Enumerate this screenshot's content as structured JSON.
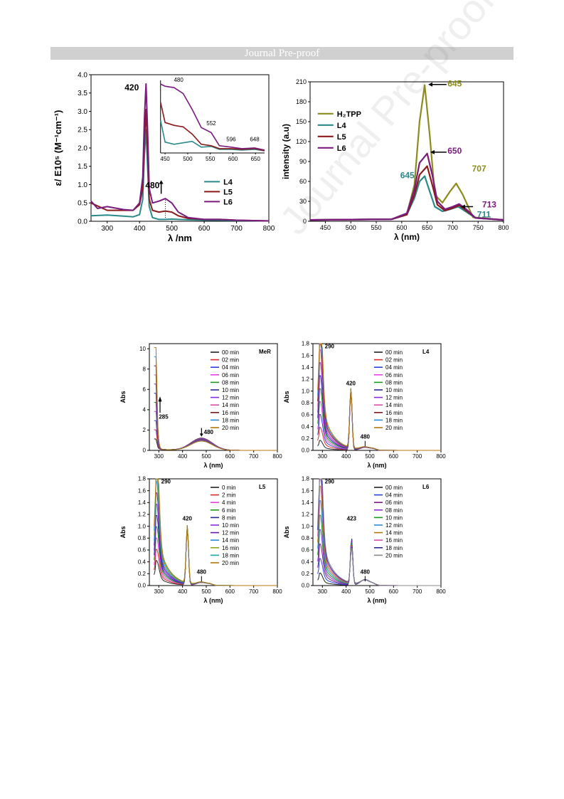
{
  "header": {
    "banner": "Journal Pre-proof"
  },
  "watermark": "Journal Pre-proof",
  "colors": {
    "L4": "#2a8a8a",
    "L5": "#8b1a1a",
    "L6": "#7a1b7e",
    "H2TPP": "#8c8c1e"
  },
  "chart_data": [
    {
      "id": "abs-main",
      "type": "line",
      "xlabel": "λ /nm",
      "ylabel": "ε/ E10⁵ (M⁻¹cm⁻¹)",
      "xlim": [
        250,
        800
      ],
      "ylim": [
        0,
        4.0
      ],
      "xticks": [
        300,
        400,
        500,
        600,
        700,
        800
      ],
      "yticks": [
        0.0,
        0.5,
        1.0,
        1.5,
        2.0,
        2.5,
        3.0,
        3.5,
        4.0
      ],
      "legend": [
        "L4",
        "L5",
        "L6"
      ],
      "legend_position": "bottom-right",
      "annotations": [
        "420",
        "480"
      ],
      "series": [
        {
          "name": "L4",
          "color": "#2a8a8a",
          "x": [
            250,
            300,
            350,
            380,
            400,
            410,
            415,
            420,
            425,
            430,
            440,
            460,
            480,
            500,
            520,
            550,
            600,
            650,
            700,
            800
          ],
          "y": [
            0.15,
            0.17,
            0.14,
            0.12,
            0.18,
            0.6,
            1.8,
            2.5,
            1.5,
            0.4,
            0.1,
            0.05,
            0.05,
            0.06,
            0.05,
            0.04,
            0.03,
            0.03,
            0.02,
            0.01
          ]
        },
        {
          "name": "L5",
          "color": "#8b1a1a",
          "x": [
            250,
            300,
            350,
            380,
            400,
            410,
            415,
            420,
            425,
            430,
            440,
            460,
            480,
            500,
            520,
            550,
            600,
            650,
            700,
            800
          ],
          "y": [
            0.5,
            0.3,
            0.3,
            0.3,
            0.45,
            0.9,
            2.2,
            3.05,
            1.9,
            0.6,
            0.3,
            0.25,
            0.28,
            0.25,
            0.15,
            0.08,
            0.05,
            0.05,
            0.03,
            0.01
          ]
        },
        {
          "name": "L6",
          "color": "#7a1b7e",
          "x": [
            250,
            270,
            300,
            350,
            380,
            400,
            410,
            415,
            420,
            425,
            430,
            440,
            460,
            480,
            500,
            520,
            550,
            600,
            650,
            700,
            800
          ],
          "y": [
            0.55,
            0.35,
            0.4,
            0.32,
            0.3,
            0.5,
            1.2,
            2.8,
            3.75,
            2.5,
            0.9,
            0.5,
            0.55,
            0.62,
            0.5,
            0.25,
            0.1,
            0.05,
            0.05,
            0.03,
            0.01
          ]
        }
      ]
    },
    {
      "id": "abs-inset",
      "type": "line",
      "xticks": [
        450,
        500,
        550,
        600,
        650
      ],
      "xlim": [
        440,
        670
      ],
      "ylim": [
        0,
        1
      ],
      "annotations": [
        "480",
        "552",
        "596",
        "648"
      ],
      "series": [
        {
          "name": "L4",
          "color": "#2a8a8a",
          "x": [
            440,
            450,
            470,
            490,
            510,
            530,
            552,
            570,
            596,
            620,
            648,
            670
          ],
          "y": [
            0.45,
            0.15,
            0.12,
            0.14,
            0.16,
            0.08,
            0.09,
            0.05,
            0.05,
            0.04,
            0.05,
            0.03
          ]
        },
        {
          "name": "L5",
          "color": "#8b1a1a",
          "x": [
            440,
            450,
            470,
            490,
            510,
            530,
            552,
            570,
            596,
            620,
            648,
            670
          ],
          "y": [
            0.7,
            0.42,
            0.38,
            0.36,
            0.26,
            0.12,
            0.1,
            0.06,
            0.06,
            0.05,
            0.06,
            0.03
          ]
        },
        {
          "name": "L6",
          "color": "#7a1b7e",
          "x": [
            440,
            450,
            470,
            490,
            510,
            530,
            552,
            570,
            596,
            620,
            648,
            670
          ],
          "y": [
            0.95,
            0.92,
            0.9,
            0.82,
            0.6,
            0.35,
            0.28,
            0.1,
            0.08,
            0.06,
            0.07,
            0.04
          ]
        }
      ]
    },
    {
      "id": "emission",
      "type": "line",
      "xlabel": "λ (nm)",
      "ylabel": "intensity (a.u)",
      "xlim": [
        420,
        800
      ],
      "ylim": [
        0,
        210
      ],
      "xticks": [
        450,
        500,
        550,
        600,
        650,
        700,
        750,
        800
      ],
      "yticks": [
        0,
        30,
        60,
        90,
        120,
        150,
        180,
        210
      ],
      "legend": [
        "H₂TPP",
        "L4",
        "L5",
        "L6"
      ],
      "legend_position": "top-left",
      "annotations": [
        "645",
        "650",
        "645",
        "707",
        "713",
        "711"
      ],
      "series": [
        {
          "name": "H₂TPP",
          "color": "#8c8c1e",
          "x": [
            420,
            580,
            610,
            625,
            635,
            645,
            655,
            665,
            680,
            695,
            707,
            720,
            740,
            800
          ],
          "y": [
            2,
            3,
            10,
            55,
            150,
            205,
            130,
            40,
            28,
            45,
            57,
            40,
            6,
            2
          ]
        },
        {
          "name": "L4",
          "color": "#2a8a8a",
          "x": [
            420,
            580,
            610,
            625,
            635,
            645,
            655,
            665,
            680,
            695,
            711,
            725,
            745,
            800
          ],
          "y": [
            2,
            3,
            10,
            35,
            60,
            68,
            45,
            22,
            15,
            18,
            22,
            15,
            5,
            2
          ]
        },
        {
          "name": "L5",
          "color": "#8b1a1a",
          "x": [
            420,
            580,
            610,
            625,
            635,
            650,
            660,
            670,
            685,
            700,
            713,
            727,
            745,
            800
          ],
          "y": [
            2,
            3,
            10,
            40,
            70,
            83,
            55,
            25,
            16,
            20,
            24,
            16,
            5,
            2
          ]
        },
        {
          "name": "L6",
          "color": "#7a1b7e",
          "x": [
            420,
            580,
            610,
            625,
            635,
            650,
            660,
            670,
            685,
            700,
            713,
            727,
            745,
            800
          ],
          "y": [
            2,
            3,
            12,
            48,
            88,
            102,
            70,
            30,
            18,
            22,
            26,
            18,
            5,
            2
          ]
        }
      ]
    },
    {
      "id": "kinetics-MeR",
      "type": "line",
      "panel_label": "MeR",
      "xlabel": "λ (nm)",
      "ylabel": "Abs",
      "xlim": [
        260,
        800
      ],
      "ylim": [
        0,
        10.5
      ],
      "xticks": [
        300,
        400,
        500,
        600,
        700,
        800
      ],
      "yticks": [
        0,
        2,
        4,
        6,
        8,
        10
      ],
      "legend": [
        "00 min",
        "02 min",
        "04 min",
        "06 min",
        "08 min",
        "10 min",
        "12 min",
        "14 min",
        "16 min",
        "18 min",
        "20 min"
      ],
      "legend_colors": [
        "#222222",
        "#e02828",
        "#2a3fe0",
        "#e63ee6",
        "#1a9a1a",
        "#282896",
        "#8a2ae0",
        "#d84ea8",
        "#7a1a1a",
        "#2a8ad8",
        "#b8760a"
      ],
      "annotations": [
        "285",
        "480"
      ],
      "peak": {
        "x": 285,
        "first": 1.0,
        "last": 10.0
      },
      "band": {
        "x": 480,
        "first": 1.2,
        "last": 0.9
      }
    },
    {
      "id": "kinetics-L4",
      "type": "line",
      "panel_label": "L4",
      "xlabel": "λ (nm)",
      "ylabel": "Abs",
      "xlim": [
        260,
        800
      ],
      "ylim": [
        0,
        1.8
      ],
      "xticks": [
        300,
        400,
        500,
        600,
        700,
        800
      ],
      "yticks": [
        0.0,
        0.2,
        0.4,
        0.6,
        0.8,
        1.0,
        1.2,
        1.4,
        1.6,
        1.8
      ],
      "legend": [
        "00 min",
        "02 min",
        "04 min",
        "06 min",
        "08 min",
        "10 min",
        "12 min",
        "14 min",
        "16 min",
        "18 min",
        "20 min"
      ],
      "legend_colors": [
        "#222222",
        "#e02828",
        "#2a3fe0",
        "#e63ee6",
        "#1a9a1a",
        "#282896",
        "#8a2ae0",
        "#d84ea8",
        "#7a1a1a",
        "#2a8ad8",
        "#b8760a"
      ],
      "annotations": [
        "290",
        "420",
        "480"
      ],
      "peak": {
        "x": 290,
        "first": 0.12,
        "last": 1.68
      },
      "soret": {
        "x": 420,
        "value": 1.0
      },
      "band": {
        "x": 480,
        "first": 0.05,
        "last": 0.05
      }
    },
    {
      "id": "kinetics-L5",
      "type": "line",
      "panel_label": "L5",
      "xlabel": "λ (nm)",
      "ylabel": "Abs",
      "xlim": [
        260,
        800
      ],
      "ylim": [
        0,
        1.8
      ],
      "xticks": [
        300,
        400,
        500,
        600,
        700,
        800
      ],
      "yticks": [
        0.0,
        0.2,
        0.4,
        0.6,
        0.8,
        1.0,
        1.2,
        1.4,
        1.6,
        1.8
      ],
      "legend": [
        "0 min",
        "2 min",
        "4 min",
        "6 min",
        "8 min",
        "10 min",
        "12 min",
        "14 min",
        "16 min",
        "18 min",
        "20 min"
      ],
      "legend_colors": [
        "#222222",
        "#e02828",
        "#e63ee6",
        "#1a9a1a",
        "#282896",
        "#8a2ae0",
        "#6a1aaa",
        "#2a8ad8",
        "#8aa81a",
        "#1aa8a0",
        "#b8760a"
      ],
      "annotations": [
        "290",
        "420",
        "480"
      ],
      "peak": {
        "x": 290,
        "first": 0.3,
        "last": 1.66
      },
      "soret": {
        "x": 420,
        "value": 0.97
      },
      "band": {
        "x": 480,
        "first": 0.05,
        "last": 0.05
      }
    },
    {
      "id": "kinetics-L6",
      "type": "line",
      "panel_label": "L6",
      "xlabel": "λ (nm)",
      "ylabel": "Abs",
      "xlim": [
        260,
        800
      ],
      "ylim": [
        0,
        1.8
      ],
      "xticks": [
        300,
        400,
        500,
        600,
        700,
        800
      ],
      "yticks": [
        0.0,
        0.2,
        0.4,
        0.6,
        0.8,
        1.0,
        1.2,
        1.4,
        1.6,
        1.8
      ],
      "legend": [
        "00 min",
        "04 min",
        "06 min",
        "08 min",
        "10 min",
        "12 min",
        "14 min",
        "16 min",
        "18 min",
        "20 min"
      ],
      "legend_colors": [
        "#222222",
        "#2a3fe0",
        "#7a1b7e",
        "#8a2ae0",
        "#1a9a1a",
        "#2a8ad8",
        "#b8760a",
        "#d84ea8",
        "#282896",
        "#888888"
      ],
      "annotations": [
        "290",
        "423",
        "480"
      ],
      "peak": {
        "x": 290,
        "first": 0.15,
        "last": 1.72
      },
      "soret": {
        "x": 423,
        "first": 0.8,
        "last": 0.6
      },
      "band": {
        "x": 480,
        "first": 0.1,
        "last": 0.08
      }
    }
  ]
}
